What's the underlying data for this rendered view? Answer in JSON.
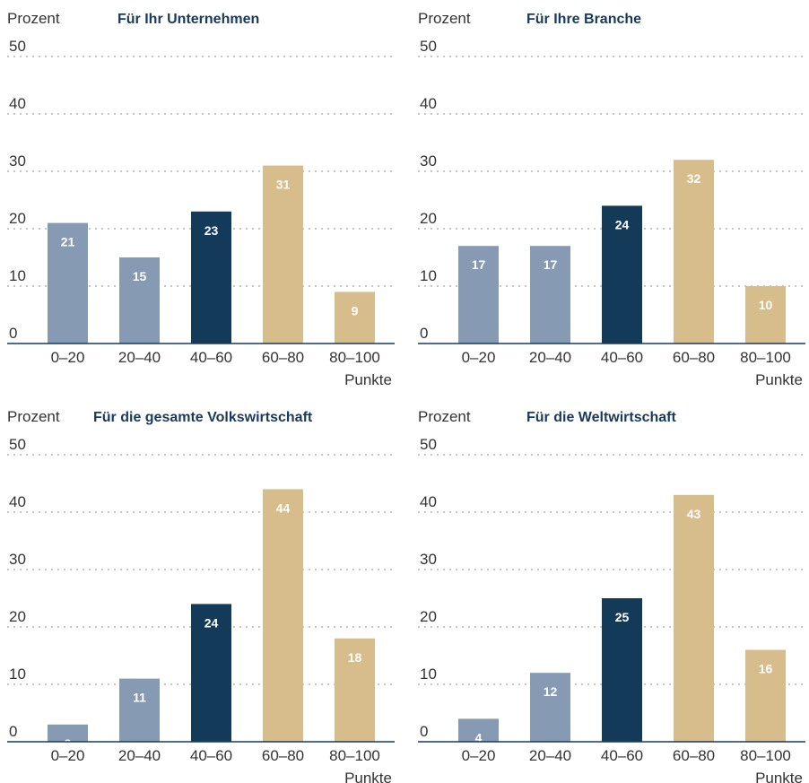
{
  "colors": {
    "low": "#869bb3",
    "mid": "#143a5a",
    "high": "#d8bd8c",
    "grid": "#8c8c8c",
    "axis": "#1a3a5c"
  },
  "chart_data": [
    {
      "type": "bar",
      "title": "Für Ihr Unternehmen",
      "ylabel": "Prozent",
      "xlabel": "Punkte",
      "categories": [
        "0–20",
        "20–40",
        "40–60",
        "60–80",
        "80–100"
      ],
      "values": [
        21,
        15,
        23,
        31,
        9
      ],
      "bar_colors": [
        "low",
        "low",
        "mid",
        "high",
        "high"
      ],
      "yticks": [
        0,
        10,
        20,
        30,
        40,
        50
      ],
      "ylim": [
        0,
        50
      ],
      "grid": true
    },
    {
      "type": "bar",
      "title": "Für Ihre Branche",
      "ylabel": "Prozent",
      "xlabel": "Punkte",
      "categories": [
        "0–20",
        "20–40",
        "40–60",
        "60–80",
        "80–100"
      ],
      "values": [
        17,
        17,
        24,
        32,
        10
      ],
      "bar_colors": [
        "low",
        "low",
        "mid",
        "high",
        "high"
      ],
      "yticks": [
        0,
        10,
        20,
        30,
        40,
        50
      ],
      "ylim": [
        0,
        50
      ],
      "grid": true
    },
    {
      "type": "bar",
      "title": "Für die gesamte Volkswirtschaft",
      "ylabel": "Prozent",
      "xlabel": "Punkte",
      "categories": [
        "0–20",
        "20–40",
        "40–60",
        "60–80",
        "80–100"
      ],
      "values": [
        3,
        11,
        24,
        44,
        18
      ],
      "bar_colors": [
        "low",
        "low",
        "mid",
        "high",
        "high"
      ],
      "yticks": [
        0,
        10,
        20,
        30,
        40,
        50
      ],
      "ylim": [
        0,
        50
      ],
      "grid": true
    },
    {
      "type": "bar",
      "title": "Für die Weltwirtschaft",
      "ylabel": "Prozent",
      "xlabel": "Punkte",
      "categories": [
        "0–20",
        "20–40",
        "40–60",
        "60–80",
        "80–100"
      ],
      "values": [
        4,
        12,
        25,
        43,
        16
      ],
      "bar_colors": [
        "low",
        "low",
        "mid",
        "high",
        "high"
      ],
      "yticks": [
        0,
        10,
        20,
        30,
        40,
        50
      ],
      "ylim": [
        0,
        50
      ],
      "grid": true
    }
  ]
}
